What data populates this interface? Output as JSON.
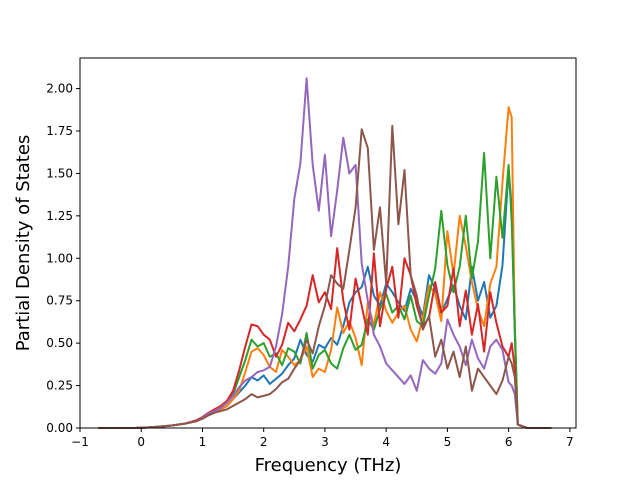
{
  "chart_data": {
    "type": "line",
    "title": "",
    "xlabel": "Frequency (THz)",
    "ylabel": "Partial Density of States",
    "xlim": [
      -1.0,
      7.1
    ],
    "ylim": [
      0,
      2.18
    ],
    "xticks": [
      -1,
      0,
      1,
      2,
      3,
      4,
      5,
      6,
      7
    ],
    "xtick_labels": [
      "−1",
      "0",
      "1",
      "2",
      "3",
      "4",
      "5",
      "6",
      "7"
    ],
    "yticks": [
      0.0,
      0.25,
      0.5,
      0.75,
      1.0,
      1.25,
      1.5,
      1.75,
      2.0
    ],
    "ytick_labels": [
      "0.00",
      "0.25",
      "0.50",
      "0.75",
      "1.00",
      "1.25",
      "1.50",
      "1.75",
      "2.00"
    ],
    "grid": false,
    "x": [
      -0.7,
      -0.5,
      -0.3,
      -0.1,
      0.1,
      0.3,
      0.5,
      0.7,
      0.9,
      1.0,
      1.1,
      1.2,
      1.3,
      1.4,
      1.5,
      1.6,
      1.7,
      1.8,
      1.9,
      2.0,
      2.1,
      2.2,
      2.3,
      2.4,
      2.5,
      2.6,
      2.7,
      2.8,
      2.9,
      3.0,
      3.1,
      3.2,
      3.3,
      3.4,
      3.5,
      3.6,
      3.7,
      3.8,
      3.9,
      4.0,
      4.1,
      4.2,
      4.3,
      4.4,
      4.5,
      4.6,
      4.7,
      4.8,
      4.9,
      5.0,
      5.1,
      5.2,
      5.3,
      5.4,
      5.5,
      5.6,
      5.7,
      5.8,
      5.9,
      6.0,
      6.05,
      6.1,
      6.15,
      6.3,
      6.5,
      6.7
    ],
    "series": [
      {
        "color": "#1f77b4",
        "values": [
          0,
          0,
          0,
          0,
          0.003,
          0.008,
          0.015,
          0.025,
          0.04,
          0.06,
          0.085,
          0.1,
          0.11,
          0.13,
          0.17,
          0.21,
          0.25,
          0.3,
          0.28,
          0.31,
          0.26,
          0.29,
          0.32,
          0.37,
          0.41,
          0.52,
          0.43,
          0.39,
          0.49,
          0.47,
          0.53,
          0.49,
          0.6,
          0.74,
          0.8,
          0.83,
          0.95,
          0.78,
          0.72,
          0.85,
          0.8,
          0.74,
          0.69,
          0.82,
          0.75,
          0.66,
          0.9,
          0.82,
          0.68,
          0.76,
          0.84,
          0.72,
          0.64,
          0.95,
          0.75,
          0.86,
          0.65,
          0.72,
          0.96,
          1.52,
          1.3,
          0.55,
          0.02,
          0,
          0,
          0
        ]
      },
      {
        "color": "#ff7f0e",
        "values": [
          0,
          0,
          0,
          0,
          0.003,
          0.008,
          0.015,
          0.025,
          0.04,
          0.06,
          0.085,
          0.1,
          0.11,
          0.13,
          0.17,
          0.22,
          0.33,
          0.45,
          0.47,
          0.43,
          0.36,
          0.33,
          0.46,
          0.42,
          0.37,
          0.4,
          0.48,
          0.3,
          0.35,
          0.33,
          0.46,
          0.71,
          0.56,
          0.63,
          0.53,
          0.37,
          0.74,
          0.6,
          0.8,
          0.69,
          0.62,
          0.68,
          0.72,
          0.58,
          0.51,
          0.65,
          0.84,
          0.79,
          0.63,
          1.16,
          0.9,
          1.25,
          1.07,
          0.86,
          0.7,
          0.6,
          0.85,
          0.95,
          1.45,
          1.89,
          1.83,
          0.6,
          0.02,
          0,
          0,
          0
        ]
      },
      {
        "color": "#2ca02c",
        "values": [
          0,
          0,
          0,
          0,
          0.003,
          0.008,
          0.015,
          0.025,
          0.04,
          0.06,
          0.085,
          0.1,
          0.12,
          0.15,
          0.2,
          0.3,
          0.4,
          0.52,
          0.48,
          0.5,
          0.42,
          0.44,
          0.37,
          0.47,
          0.45,
          0.38,
          0.56,
          0.35,
          0.43,
          0.46,
          0.38,
          0.35,
          0.47,
          0.55,
          0.46,
          0.49,
          0.64,
          0.58,
          0.7,
          0.79,
          0.68,
          0.72,
          0.64,
          0.78,
          0.63,
          0.6,
          0.78,
          0.94,
          1.28,
          0.96,
          0.8,
          0.95,
          1.25,
          0.88,
          1.1,
          1.62,
          1.0,
          1.48,
          1.12,
          1.55,
          1.22,
          0.6,
          0.02,
          0,
          0,
          0
        ]
      },
      {
        "color": "#d62728",
        "values": [
          0,
          0,
          0,
          0,
          0.003,
          0.008,
          0.015,
          0.025,
          0.045,
          0.065,
          0.09,
          0.11,
          0.13,
          0.16,
          0.22,
          0.34,
          0.48,
          0.61,
          0.6,
          0.55,
          0.52,
          0.42,
          0.49,
          0.62,
          0.57,
          0.64,
          0.72,
          0.9,
          0.74,
          0.8,
          0.7,
          1.06,
          0.75,
          0.58,
          0.88,
          0.72,
          0.55,
          1.03,
          0.6,
          0.82,
          0.95,
          0.65,
          1.0,
          0.9,
          0.72,
          0.6,
          0.65,
          0.86,
          0.68,
          0.72,
          0.94,
          0.6,
          0.81,
          0.55,
          0.73,
          0.45,
          0.8,
          0.62,
          0.48,
          0.42,
          0.5,
          0.35,
          0.02,
          0,
          0,
          0
        ]
      },
      {
        "color": "#9467bd",
        "values": [
          0,
          0,
          0,
          0,
          0.003,
          0.008,
          0.015,
          0.025,
          0.04,
          0.06,
          0.085,
          0.1,
          0.12,
          0.15,
          0.19,
          0.24,
          0.28,
          0.3,
          0.33,
          0.34,
          0.36,
          0.48,
          0.67,
          0.95,
          1.35,
          1.56,
          2.06,
          1.55,
          1.28,
          1.61,
          1.13,
          1.4,
          1.71,
          1.5,
          1.55,
          0.97,
          0.75,
          0.55,
          0.48,
          0.38,
          0.34,
          0.3,
          0.26,
          0.31,
          0.22,
          0.4,
          0.35,
          0.32,
          0.38,
          0.64,
          0.55,
          0.48,
          0.37,
          0.52,
          0.41,
          0.35,
          0.48,
          0.52,
          0.46,
          0.27,
          0.25,
          0.2,
          0.02,
          0,
          0,
          0
        ]
      },
      {
        "color": "#8c564b",
        "values": [
          0,
          0,
          0,
          0,
          0.003,
          0.008,
          0.015,
          0.025,
          0.04,
          0.055,
          0.075,
          0.09,
          0.1,
          0.11,
          0.13,
          0.15,
          0.17,
          0.2,
          0.18,
          0.19,
          0.2,
          0.23,
          0.27,
          0.29,
          0.35,
          0.4,
          0.52,
          0.44,
          0.6,
          0.72,
          0.9,
          0.85,
          0.82,
          1.05,
          1.3,
          1.76,
          1.65,
          1.05,
          1.3,
          0.85,
          1.78,
          1.2,
          1.52,
          0.9,
          0.78,
          0.58,
          0.66,
          0.42,
          0.52,
          0.35,
          0.45,
          0.3,
          0.48,
          0.22,
          0.35,
          0.3,
          0.25,
          0.2,
          0.28,
          0.42,
          0.38,
          0.3,
          0.02,
          0,
          0,
          0
        ]
      }
    ]
  }
}
